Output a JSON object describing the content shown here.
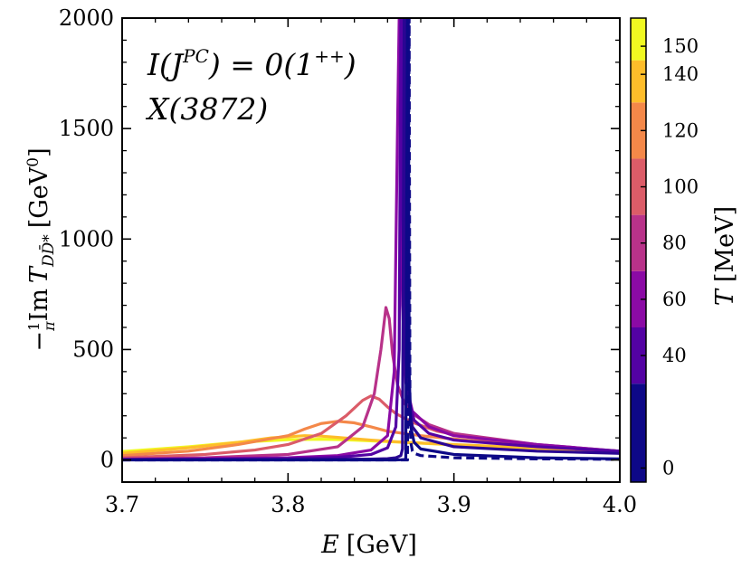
{
  "chart_data": {
    "type": "line",
    "x": {
      "label_var": "E",
      "label_unit": "[GeV]",
      "range": [
        3.7,
        4.0
      ],
      "ticks": [
        3.7,
        3.8,
        3.9,
        4.0
      ],
      "tick_labels": [
        "3.7",
        "3.8",
        "3.9",
        "4.0"
      ]
    },
    "y": {
      "label_prefix": "−",
      "label_frac_num": "1",
      "label_frac_den": "π",
      "label_im": "Im",
      "label_T": "T",
      "label_sub": "DD̄*",
      "label_unit": "[GeV",
      "label_unit_sup": "0",
      "label_unit_close": "]",
      "range": [
        -100,
        2000
      ],
      "ticks": [
        0,
        500,
        1000,
        1500,
        2000
      ],
      "tick_labels": [
        "0",
        "500",
        "1000",
        "1500",
        "2000"
      ]
    },
    "annotations": {
      "quantum_numbers": "I(J",
      "quantum_sup": "PC",
      "quantum_rest": ") = 0(1",
      "quantum_sup2": "++",
      "quantum_close": ")",
      "state": "X(3872)"
    },
    "colorbar": {
      "label_var": "T",
      "label_unit": "[MeV]",
      "range": [
        -5,
        160
      ],
      "ticks": [
        0,
        40,
        60,
        80,
        100,
        120,
        140,
        150
      ],
      "tick_labels": [
        "0",
        "40",
        "60",
        "80",
        "100",
        "120",
        "140",
        "150"
      ],
      "bands": [
        {
          "from": -5,
          "to": 30,
          "color": "#0d0887"
        },
        {
          "from": 30,
          "to": 50,
          "color": "#5302a3"
        },
        {
          "from": 50,
          "to": 70,
          "color": "#8b0aa5"
        },
        {
          "from": 70,
          "to": 90,
          "color": "#b83289"
        },
        {
          "from": 90,
          "to": 110,
          "color": "#db5c68"
        },
        {
          "from": 110,
          "to": 130,
          "color": "#f48849"
        },
        {
          "from": 130,
          "to": 145,
          "color": "#febd2a"
        },
        {
          "from": 145,
          "to": 160,
          "color": "#f0f921"
        }
      ]
    },
    "series": [
      {
        "name": "T = 0 MeV",
        "color": "#0d0887",
        "dashed": true,
        "x": [
          3.7,
          3.8,
          3.85,
          3.86,
          3.865,
          3.868,
          3.87,
          3.8715,
          3.872,
          3.873,
          3.8735,
          3.874,
          3.875,
          3.876,
          3.88,
          3.9,
          3.95,
          4.0
        ],
        "y": [
          0,
          0,
          0,
          0,
          0,
          0,
          0,
          0,
          0,
          2000,
          200,
          80,
          40,
          30,
          20,
          10,
          5,
          3
        ]
      },
      {
        "name": "T = 10 MeV",
        "color": "#0d0887",
        "x": [
          3.7,
          3.8,
          3.85,
          3.86,
          3.865,
          3.868,
          3.87,
          3.871,
          3.872,
          3.8725,
          3.873,
          3.874,
          3.876,
          3.88,
          3.9,
          3.95,
          4.0
        ],
        "y": [
          0,
          0,
          0,
          0,
          0,
          1,
          2,
          5,
          2000,
          2000,
          400,
          150,
          80,
          50,
          25,
          10,
          5
        ]
      },
      {
        "name": "T = 20 MeV",
        "color": "#2a0593",
        "x": [
          3.7,
          3.8,
          3.85,
          3.86,
          3.865,
          3.868,
          3.869,
          3.87,
          3.8705,
          3.871,
          3.872,
          3.875,
          3.88,
          3.9,
          3.95,
          4.0
        ],
        "y": [
          1,
          2,
          4,
          6,
          10,
          20,
          50,
          2000,
          2000,
          800,
          300,
          150,
          100,
          60,
          40,
          30
        ]
      },
      {
        "name": "T = 40 MeV",
        "color": "#5302a3",
        "x": [
          3.7,
          3.8,
          3.83,
          3.85,
          3.86,
          3.865,
          3.867,
          3.868,
          3.8685,
          3.869,
          3.87,
          3.872,
          3.876,
          3.885,
          3.9,
          3.95,
          4.0
        ],
        "y": [
          2,
          6,
          12,
          25,
          55,
          150,
          500,
          2000,
          2000,
          1200,
          600,
          300,
          180,
          120,
          90,
          60,
          40
        ]
      },
      {
        "name": "T = 60 MeV",
        "color": "#8b0aa5",
        "x": [
          3.7,
          3.8,
          3.83,
          3.85,
          3.86,
          3.864,
          3.866,
          3.867,
          3.8675,
          3.868,
          3.869,
          3.871,
          3.875,
          3.885,
          3.9,
          3.95,
          4.0
        ],
        "y": [
          3,
          10,
          20,
          45,
          110,
          400,
          1500,
          2000,
          2000,
          1300,
          700,
          350,
          220,
          150,
          110,
          70,
          40
        ]
      },
      {
        "name": "T = 80 MeV",
        "color": "#b83289",
        "x": [
          3.7,
          3.75,
          3.8,
          3.83,
          3.845,
          3.852,
          3.856,
          3.859,
          3.861,
          3.863,
          3.866,
          3.87,
          3.875,
          3.885,
          3.9,
          3.95,
          4.0
        ],
        "y": [
          5,
          10,
          25,
          60,
          150,
          300,
          500,
          690,
          640,
          480,
          340,
          260,
          210,
          160,
          120,
          70,
          40
        ]
      },
      {
        "name": "T = 100 MeV",
        "color": "#db5c68",
        "x": [
          3.7,
          3.75,
          3.78,
          3.8,
          3.82,
          3.835,
          3.845,
          3.85,
          3.855,
          3.86,
          3.865,
          3.875,
          3.89,
          3.92,
          3.95,
          4.0
        ],
        "y": [
          10,
          25,
          45,
          70,
          120,
          200,
          270,
          290,
          275,
          240,
          210,
          170,
          130,
          90,
          65,
          40
        ]
      },
      {
        "name": "T = 120 MeV",
        "color": "#f48849",
        "x": [
          3.7,
          3.74,
          3.77,
          3.8,
          3.81,
          3.82,
          3.83,
          3.84,
          3.85,
          3.86,
          3.88,
          3.9,
          3.93,
          3.96,
          4.0
        ],
        "y": [
          20,
          40,
          70,
          110,
          140,
          165,
          175,
          168,
          150,
          130,
          110,
          95,
          75,
          55,
          40
        ]
      },
      {
        "name": "T = 140 MeV",
        "color": "#febd2a",
        "x": [
          3.7,
          3.74,
          3.77,
          3.79,
          3.81,
          3.82,
          3.83,
          3.85,
          3.87,
          3.9,
          3.93,
          3.96,
          4.0
        ],
        "y": [
          30,
          55,
          80,
          100,
          110,
          108,
          102,
          90,
          80,
          70,
          60,
          50,
          40
        ]
      },
      {
        "name": "T = 150 MeV",
        "color": "#f0f921",
        "x": [
          3.7,
          3.74,
          3.77,
          3.8,
          3.82,
          3.84,
          3.87,
          3.9,
          3.93,
          3.96,
          4.0
        ],
        "y": [
          38,
          60,
          80,
          92,
          94,
          90,
          80,
          68,
          58,
          48,
          40
        ]
      }
    ]
  }
}
